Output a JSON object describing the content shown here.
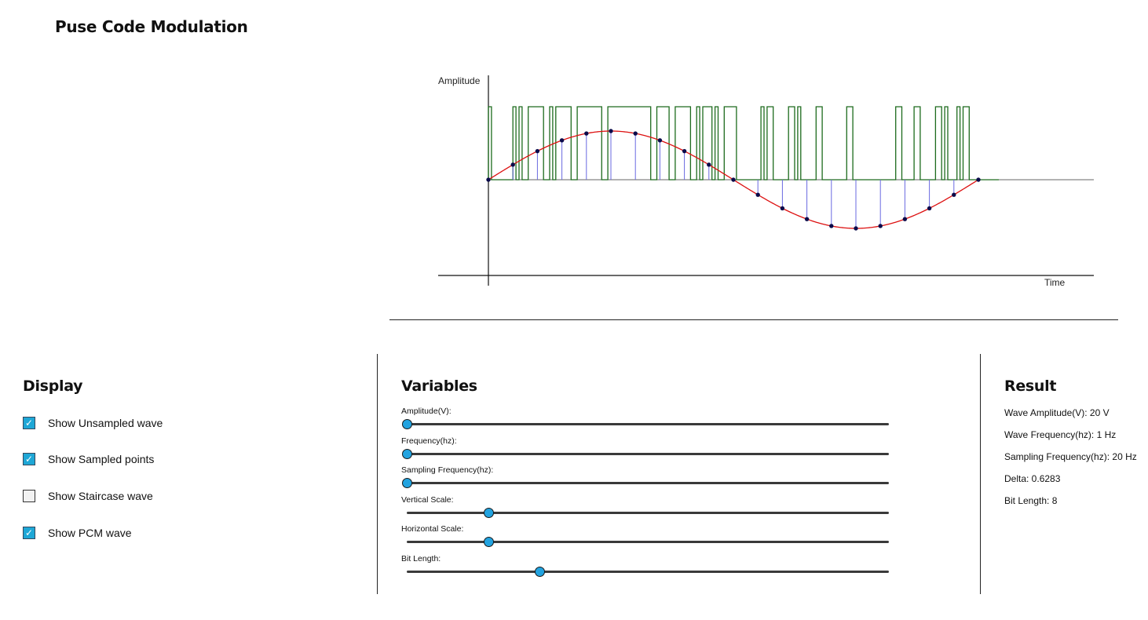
{
  "app": {
    "title": "Puse Code Modulation"
  },
  "chart_data": {
    "type": "line",
    "ylabel": "Amplitude",
    "xlabel": "Time",
    "signal": {
      "amplitude": 20,
      "frequency": 1,
      "sampling_frequency": 20,
      "bit_length": 8
    },
    "samples": [
      0,
      6.18,
      11.76,
      16.18,
      19.02,
      20,
      19.02,
      16.18,
      11.76,
      6.18,
      0,
      -6.18,
      -11.76,
      -16.18,
      -19.02,
      -20,
      -19.02,
      -16.18,
      -11.76,
      -6.18,
      0
    ],
    "pcm_codes": [
      "10000000",
      "10100111",
      "11001011",
      "11100111",
      "11111001",
      "11111111",
      "11111001",
      "11100111",
      "11001011",
      "10100111",
      "10000000",
      "01011000",
      "00110100",
      "00011000",
      "00000110",
      "00000000",
      "00000110",
      "00011000",
      "00110100",
      "01011000",
      "10000000"
    ],
    "series": [
      {
        "name": "Unsampled wave",
        "color": "#dd1111"
      },
      {
        "name": "Sampled points",
        "color": "#0b0b4a",
        "stem_color": "#6a6ae0"
      },
      {
        "name": "PCM wave",
        "color": "#1d6b1d"
      }
    ]
  },
  "display": {
    "heading": "Display",
    "options": [
      {
        "label": "Show Unsampled wave",
        "checked": true
      },
      {
        "label": "Show Sampled points",
        "checked": true
      },
      {
        "label": "Show Staircase wave",
        "checked": false
      },
      {
        "label": "Show PCM wave",
        "checked": true
      }
    ]
  },
  "variables": {
    "heading": "Variables",
    "sliders": [
      {
        "label": "Amplitude(V):",
        "fraction": 0.0
      },
      {
        "label": "Frequency(hz):",
        "fraction": 0.0
      },
      {
        "label": "Sampling Frequency(hz):",
        "fraction": 0.0
      },
      {
        "label": "Vertical Scale:",
        "fraction": 0.17
      },
      {
        "label": "Horizontal Scale:",
        "fraction": 0.17
      },
      {
        "label": "Bit Length:",
        "fraction": 0.275
      }
    ]
  },
  "result": {
    "heading": "Result",
    "lines": [
      "Wave Amplitude(V): 20 V",
      "Wave Frequency(hz): 1 Hz",
      "Sampling Frequency(hz): 20 Hz",
      "Delta: 0.6283",
      "Bit Length: 8"
    ]
  }
}
